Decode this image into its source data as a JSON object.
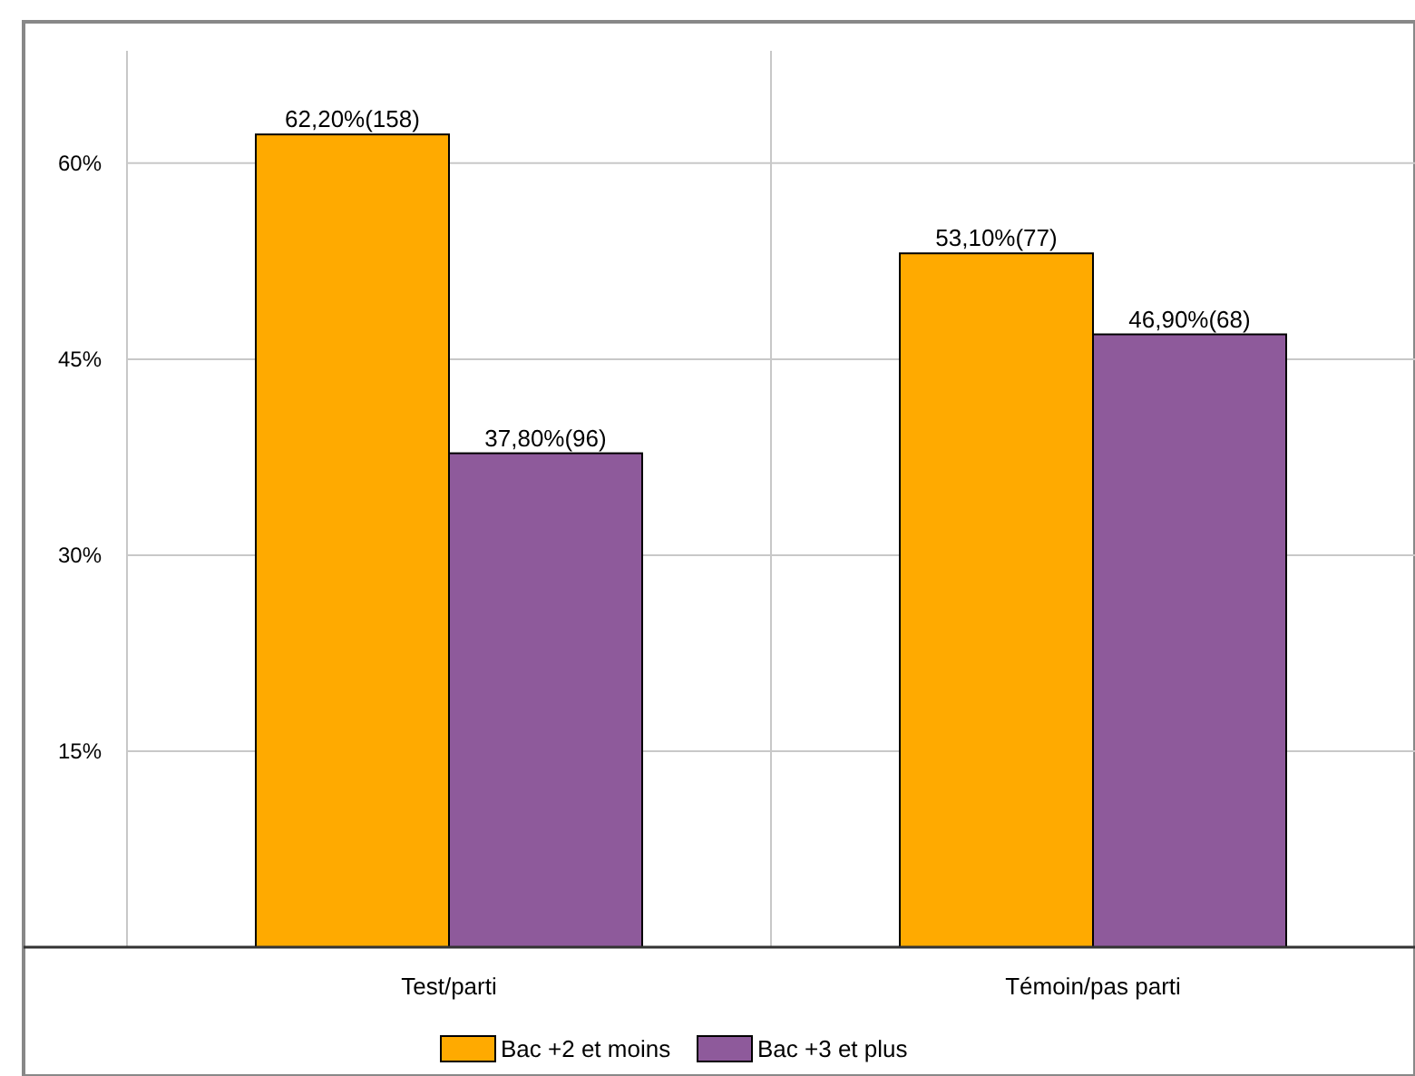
{
  "chart_data": {
    "type": "bar",
    "categories": [
      "Test/parti",
      "Témoin/pas parti"
    ],
    "series": [
      {
        "name": "Bac +2 et moins",
        "color": "#ffaa00",
        "values": [
          62.2,
          53.1
        ],
        "value_labels": [
          "62,20%(158)",
          "53,10%(77)"
        ]
      },
      {
        "name": "Bac +3 et plus",
        "color": "#8e5a9b",
        "values": [
          37.8,
          46.9
        ],
        "value_labels": [
          "37,80%(96)",
          "46,90%(68)"
        ]
      }
    ],
    "ylim": [
      0,
      68.6
    ],
    "yticks": [
      {
        "value": 15,
        "label": "15%"
      },
      {
        "value": 30,
        "label": "30%"
      },
      {
        "value": 45,
        "label": "45%"
      },
      {
        "value": 60,
        "label": "60%"
      }
    ],
    "grid": true,
    "legend": "bottom"
  }
}
